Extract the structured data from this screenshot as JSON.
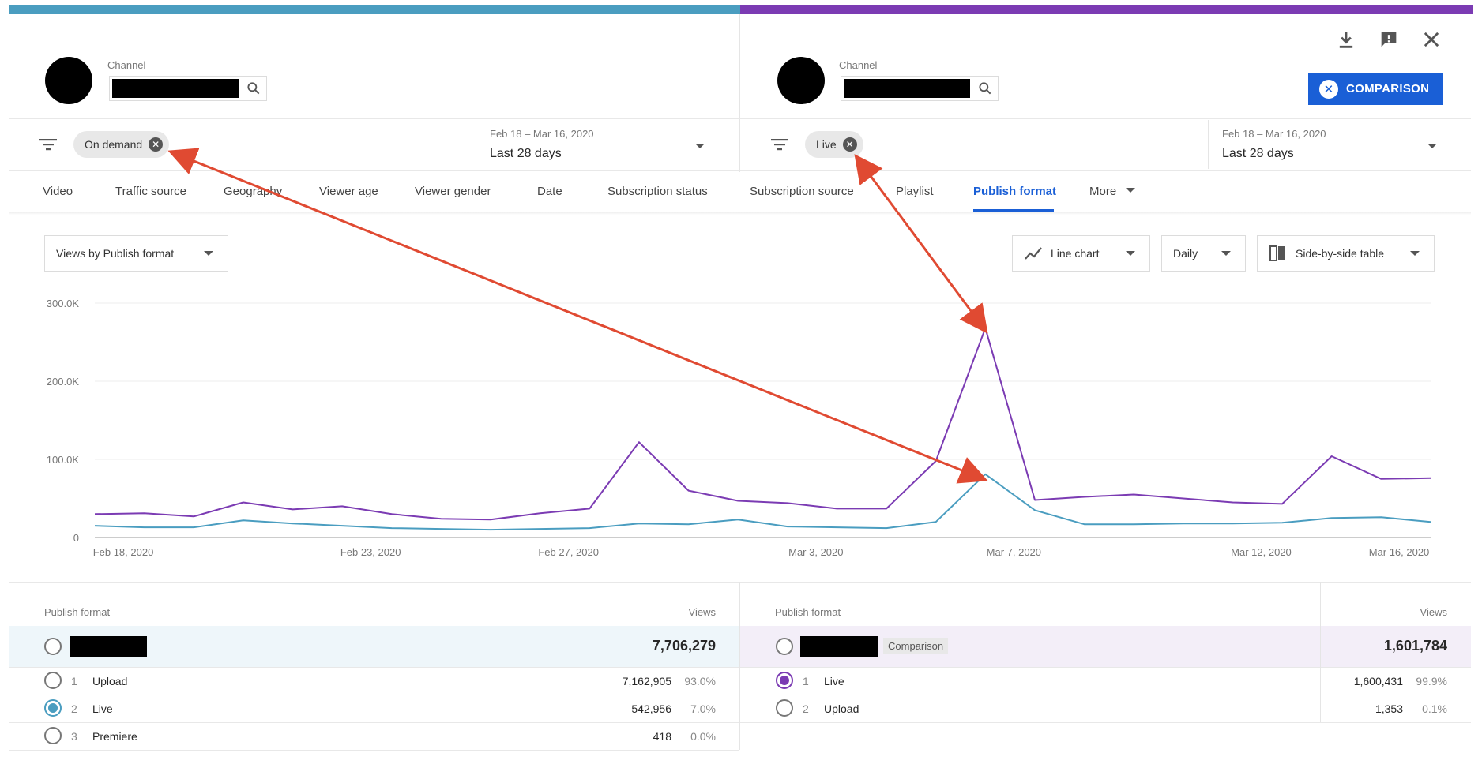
{
  "left": {
    "channel_label": "Channel",
    "filter_chip": "On demand",
    "date_range": "Feb 18 – Mar 16, 2020",
    "date_preset": "Last 28 days"
  },
  "right": {
    "channel_label": "Channel",
    "filter_chip": "Live",
    "date_range": "Feb 18 – Mar 16, 2020",
    "date_preset": "Last 28 days",
    "comparison_button": "COMPARISON"
  },
  "tabs": [
    "Video",
    "Traffic source",
    "Geography",
    "Viewer age",
    "Viewer gender",
    "Date",
    "Subscription status",
    "Subscription source",
    "Playlist",
    "Publish format",
    "More"
  ],
  "active_tab": "Publish format",
  "controls": {
    "metric": "Views by Publish format",
    "chart_type": "Line chart",
    "interval": "Daily",
    "table_mode": "Side-by-side table"
  },
  "colors": {
    "left_accent": "#4a9dc0",
    "right_accent": "#7b3bb3",
    "primary": "#1a5fd6",
    "annotation_arrow": "#e04a32"
  },
  "chart_data": {
    "type": "line",
    "ylim": [
      0,
      300000
    ],
    "y_ticks": [
      "0",
      "100.0K",
      "200.0K",
      "300.0K"
    ],
    "x_ticks": [
      "Feb 18, 2020",
      "Feb 23, 2020",
      "Feb 27, 2020",
      "Mar 3, 2020",
      "Mar 7, 2020",
      "Mar 12, 2020",
      "Mar 16, 2020"
    ],
    "x": [
      "Feb 18",
      "Feb 19",
      "Feb 20",
      "Feb 21",
      "Feb 22",
      "Feb 23",
      "Feb 24",
      "Feb 25",
      "Feb 26",
      "Feb 27",
      "Feb 28",
      "Feb 29",
      "Mar 1",
      "Mar 2",
      "Mar 3",
      "Mar 4",
      "Mar 5",
      "Mar 6",
      "Mar 7",
      "Mar 8",
      "Mar 9",
      "Mar 10",
      "Mar 11",
      "Mar 12",
      "Mar 13",
      "Mar 14",
      "Mar 15",
      "Mar 16"
    ],
    "series": [
      {
        "color": "#7b3bb3",
        "values": [
          30000,
          31000,
          27000,
          45000,
          36000,
          40000,
          30000,
          24000,
          23000,
          31000,
          37000,
          122000,
          60000,
          47000,
          44000,
          37000,
          37000,
          98000,
          268000,
          48000,
          52000,
          55000,
          50000,
          45000,
          43000,
          104000,
          75000,
          76000
        ]
      },
      {
        "color": "#4a9dc0",
        "values": [
          15000,
          13000,
          13000,
          22000,
          18000,
          15000,
          12000,
          11000,
          10000,
          11000,
          12000,
          18000,
          17000,
          23000,
          14000,
          13000,
          12000,
          20000,
          81000,
          35000,
          17000,
          17000,
          18000,
          18000,
          19000,
          25000,
          26000,
          20000
        ]
      }
    ]
  },
  "table_left": {
    "col_name": "Publish format",
    "col_views": "Views",
    "total": "7,706,279",
    "rows": [
      {
        "rank": "1",
        "name": "Upload",
        "views": "7,162,905",
        "pct": "93.0%"
      },
      {
        "rank": "2",
        "name": "Live",
        "views": "542,956",
        "pct": "7.0%"
      },
      {
        "rank": "3",
        "name": "Premiere",
        "views": "418",
        "pct": "0.0%"
      }
    ]
  },
  "table_right": {
    "col_name": "Publish format",
    "col_views": "Views",
    "comparison_tag": "Comparison",
    "total": "1,601,784",
    "rows": [
      {
        "rank": "1",
        "name": "Live",
        "views": "1,600,431",
        "pct": "99.9%"
      },
      {
        "rank": "2",
        "name": "Upload",
        "views": "1,353",
        "pct": "0.1%"
      }
    ]
  }
}
